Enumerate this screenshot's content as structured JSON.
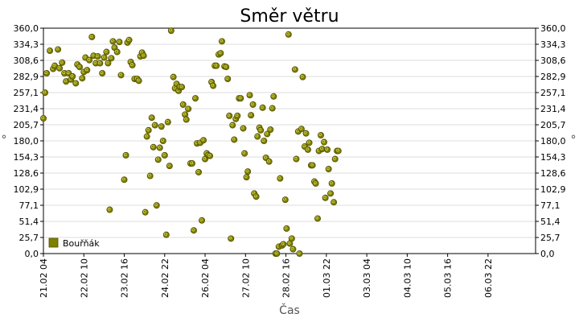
{
  "chart_data": {
    "type": "scatter",
    "title": "Směr větru",
    "xlabel": "Čas",
    "ylabel": "°",
    "ylim": [
      0,
      360
    ],
    "xlim": [
      0,
      15.22
    ],
    "y_ticks": [
      "0,0",
      "25,7",
      "51,4",
      "77,1",
      "102,9",
      "128,6",
      "154,3",
      "180,0",
      "205,7",
      "231,4",
      "257,1",
      "282,9",
      "308,6",
      "334,3",
      "360,0"
    ],
    "x_ticks": [
      {
        "x": 0.0,
        "label": "21.02 04"
      },
      {
        "x": 1.25,
        "label": "22.02 10"
      },
      {
        "x": 2.5,
        "label": "23.02 16"
      },
      {
        "x": 3.75,
        "label": "24.02 22"
      },
      {
        "x": 5.0,
        "label": "26.02 04"
      },
      {
        "x": 6.25,
        "label": "27.02 10"
      },
      {
        "x": 7.5,
        "label": "28.02 16"
      },
      {
        "x": 8.75,
        "label": "01.03 22"
      },
      {
        "x": 10.0,
        "label": "03.03 04"
      },
      {
        "x": 11.25,
        "label": "04.03 10"
      },
      {
        "x": 12.5,
        "label": "05.03 16"
      },
      {
        "x": 13.75,
        "label": "06.03 22"
      }
    ],
    "grid": "horizontal",
    "legend_position": "bottom-left",
    "marker_color": "#7f7f00",
    "series": [
      {
        "name": "Bouřňák",
        "points": [
          [
            0.0,
            216
          ],
          [
            0.05,
            257
          ],
          [
            0.1,
            288
          ],
          [
            0.2,
            324
          ],
          [
            0.3,
            295
          ],
          [
            0.35,
            300
          ],
          [
            0.45,
            326
          ],
          [
            0.5,
            296
          ],
          [
            0.58,
            305
          ],
          [
            0.65,
            288
          ],
          [
            0.7,
            275
          ],
          [
            0.78,
            288
          ],
          [
            0.85,
            278
          ],
          [
            0.9,
            283
          ],
          [
            1.0,
            272
          ],
          [
            1.05,
            302
          ],
          [
            1.12,
            298
          ],
          [
            1.2,
            280
          ],
          [
            1.25,
            290
          ],
          [
            1.3,
            313
          ],
          [
            1.35,
            293
          ],
          [
            1.42,
            309
          ],
          [
            1.5,
            346
          ],
          [
            1.55,
            316
          ],
          [
            1.62,
            304
          ],
          [
            1.68,
            315
          ],
          [
            1.75,
            304
          ],
          [
            1.82,
            288
          ],
          [
            1.88,
            313
          ],
          [
            1.95,
            322
          ],
          [
            2.0,
            304
          ],
          [
            2.05,
            70
          ],
          [
            2.1,
            312
          ],
          [
            2.15,
            339
          ],
          [
            2.2,
            329
          ],
          [
            2.28,
            322
          ],
          [
            2.35,
            338
          ],
          [
            2.4,
            285
          ],
          [
            2.5,
            118
          ],
          [
            2.55,
            157
          ],
          [
            2.6,
            337
          ],
          [
            2.65,
            341
          ],
          [
            2.7,
            306
          ],
          [
            2.75,
            301
          ],
          [
            2.82,
            279
          ],
          [
            2.9,
            279
          ],
          [
            2.95,
            276
          ],
          [
            3.0,
            315
          ],
          [
            3.05,
            321
          ],
          [
            3.1,
            316
          ],
          [
            3.15,
            66
          ],
          [
            3.2,
            187
          ],
          [
            3.25,
            197
          ],
          [
            3.3,
            124
          ],
          [
            3.35,
            217
          ],
          [
            3.4,
            170
          ],
          [
            3.45,
            205
          ],
          [
            3.5,
            77
          ],
          [
            3.55,
            150
          ],
          [
            3.6,
            169
          ],
          [
            3.65,
            203
          ],
          [
            3.7,
            180
          ],
          [
            3.75,
            157
          ],
          [
            3.8,
            30
          ],
          [
            3.85,
            210
          ],
          [
            3.9,
            140
          ],
          [
            3.95,
            356
          ],
          [
            4.02,
            282
          ],
          [
            4.07,
            264
          ],
          [
            4.12,
            271
          ],
          [
            4.18,
            260
          ],
          [
            4.22,
            266
          ],
          [
            4.28,
            266
          ],
          [
            4.32,
            238
          ],
          [
            4.38,
            222
          ],
          [
            4.42,
            214
          ],
          [
            4.48,
            231
          ],
          [
            4.55,
            144
          ],
          [
            4.6,
            144
          ],
          [
            4.65,
            37
          ],
          [
            4.7,
            248
          ],
          [
            4.75,
            176
          ],
          [
            4.8,
            130
          ],
          [
            4.85,
            177
          ],
          [
            4.9,
            53
          ],
          [
            4.95,
            181
          ],
          [
            5.0,
            151
          ],
          [
            5.05,
            160
          ],
          [
            5.1,
            157
          ],
          [
            5.15,
            156
          ],
          [
            5.2,
            274
          ],
          [
            5.25,
            268
          ],
          [
            5.3,
            300
          ],
          [
            5.35,
            300
          ],
          [
            5.42,
            318
          ],
          [
            5.48,
            320
          ],
          [
            5.52,
            339
          ],
          [
            5.6,
            299
          ],
          [
            5.65,
            298
          ],
          [
            5.7,
            279
          ],
          [
            5.75,
            220
          ],
          [
            5.8,
            24
          ],
          [
            5.85,
            205
          ],
          [
            5.9,
            182
          ],
          [
            5.95,
            215
          ],
          [
            6.0,
            220
          ],
          [
            6.05,
            248
          ],
          [
            6.1,
            248
          ],
          [
            6.18,
            200
          ],
          [
            6.22,
            160
          ],
          [
            6.28,
            122
          ],
          [
            6.32,
            131
          ],
          [
            6.38,
            253
          ],
          [
            6.42,
            221
          ],
          [
            6.48,
            238
          ],
          [
            6.52,
            96
          ],
          [
            6.58,
            91
          ],
          [
            6.62,
            187
          ],
          [
            6.68,
            201
          ],
          [
            6.72,
            197
          ],
          [
            6.78,
            233
          ],
          [
            6.82,
            180
          ],
          [
            6.88,
            153
          ],
          [
            6.92,
            191
          ],
          [
            6.98,
            147
          ],
          [
            7.02,
            198
          ],
          [
            7.08,
            232
          ],
          [
            7.12,
            251
          ],
          [
            7.18,
            0
          ],
          [
            7.22,
            0
          ],
          [
            7.28,
            11
          ],
          [
            7.32,
            120
          ],
          [
            7.38,
            13
          ],
          [
            7.42,
            15
          ],
          [
            7.48,
            86
          ],
          [
            7.52,
            40
          ],
          [
            7.58,
            350
          ],
          [
            7.62,
            16
          ],
          [
            7.68,
            24
          ],
          [
            7.72,
            7
          ],
          [
            7.78,
            294
          ],
          [
            7.82,
            151
          ],
          [
            7.88,
            195
          ],
          [
            7.92,
            0
          ],
          [
            7.98,
            199
          ],
          [
            8.02,
            282
          ],
          [
            8.08,
            171
          ],
          [
            8.12,
            192
          ],
          [
            8.18,
            166
          ],
          [
            8.22,
            177
          ],
          [
            8.28,
            141
          ],
          [
            8.32,
            141
          ],
          [
            8.38,
            115
          ],
          [
            8.42,
            112
          ],
          [
            8.48,
            56
          ],
          [
            8.52,
            164
          ],
          [
            8.58,
            189
          ],
          [
            8.62,
            167
          ],
          [
            8.68,
            178
          ],
          [
            8.72,
            89
          ],
          [
            8.78,
            166
          ],
          [
            8.82,
            135
          ],
          [
            8.88,
            96
          ],
          [
            8.92,
            112
          ],
          [
            8.98,
            82
          ],
          [
            9.02,
            151
          ],
          [
            9.08,
            164
          ],
          [
            9.12,
            164
          ]
        ]
      }
    ]
  }
}
